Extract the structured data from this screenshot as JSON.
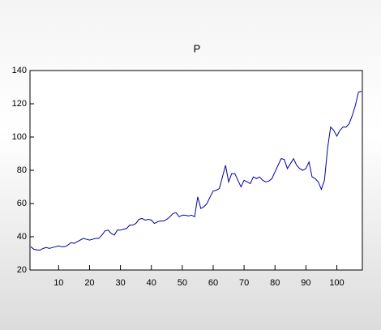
{
  "chart_data": {
    "type": "line",
    "title": "P",
    "x": [
      1,
      2,
      3,
      4,
      5,
      6,
      7,
      8,
      9,
      10,
      11,
      12,
      13,
      14,
      15,
      16,
      17,
      18,
      19,
      20,
      21,
      22,
      23,
      24,
      25,
      26,
      27,
      28,
      29,
      30,
      31,
      32,
      33,
      34,
      35,
      36,
      37,
      38,
      39,
      40,
      41,
      42,
      43,
      44,
      45,
      46,
      47,
      48,
      49,
      50,
      51,
      52,
      53,
      54,
      55,
      56,
      57,
      58,
      59,
      60,
      61,
      62,
      63,
      64,
      65,
      66,
      67,
      68,
      69,
      70,
      71,
      72,
      73,
      74,
      75,
      76,
      77,
      78,
      79,
      80,
      81,
      82,
      83,
      84,
      85,
      86,
      87,
      88,
      89,
      90,
      91,
      92,
      93,
      94,
      95,
      96,
      97,
      98,
      99,
      100,
      101,
      102,
      103,
      104,
      105,
      106,
      107,
      108
    ],
    "series": [
      {
        "color": "#0000a0",
        "values": [
          34,
          32.5,
          32,
          32,
          33,
          33.5,
          33,
          33.5,
          34,
          34.5,
          34,
          34,
          35,
          36.5,
          36,
          37,
          38,
          39,
          38.5,
          38,
          38.5,
          39,
          39,
          41,
          43.5,
          44,
          42,
          41,
          44,
          44,
          44.5,
          45,
          47,
          47,
          48,
          50.5,
          51,
          50,
          50.5,
          50,
          48,
          49,
          49.5,
          49.5,
          50.5,
          52,
          54,
          54.5,
          52,
          53,
          53,
          52.5,
          53,
          52,
          64,
          57,
          58,
          60,
          64,
          67.5,
          68,
          69,
          76,
          83,
          73,
          78,
          78,
          74,
          70,
          74,
          73,
          72,
          76,
          75,
          76,
          74,
          73,
          73.5,
          75,
          79,
          83,
          87,
          86.5,
          81,
          84,
          87,
          83,
          81,
          80,
          81,
          85,
          76,
          75,
          73,
          68.5,
          74,
          93,
          106,
          104,
          100.5,
          104,
          106,
          106,
          108,
          113,
          119,
          127,
          127.5
        ]
      }
    ],
    "xlim": [
      1,
      108
    ],
    "xticks": [
      10,
      20,
      30,
      40,
      50,
      60,
      70,
      80,
      90,
      100
    ],
    "ylim": [
      20,
      140
    ],
    "yticks": [
      20,
      40,
      60,
      80,
      100,
      120,
      140
    ]
  }
}
